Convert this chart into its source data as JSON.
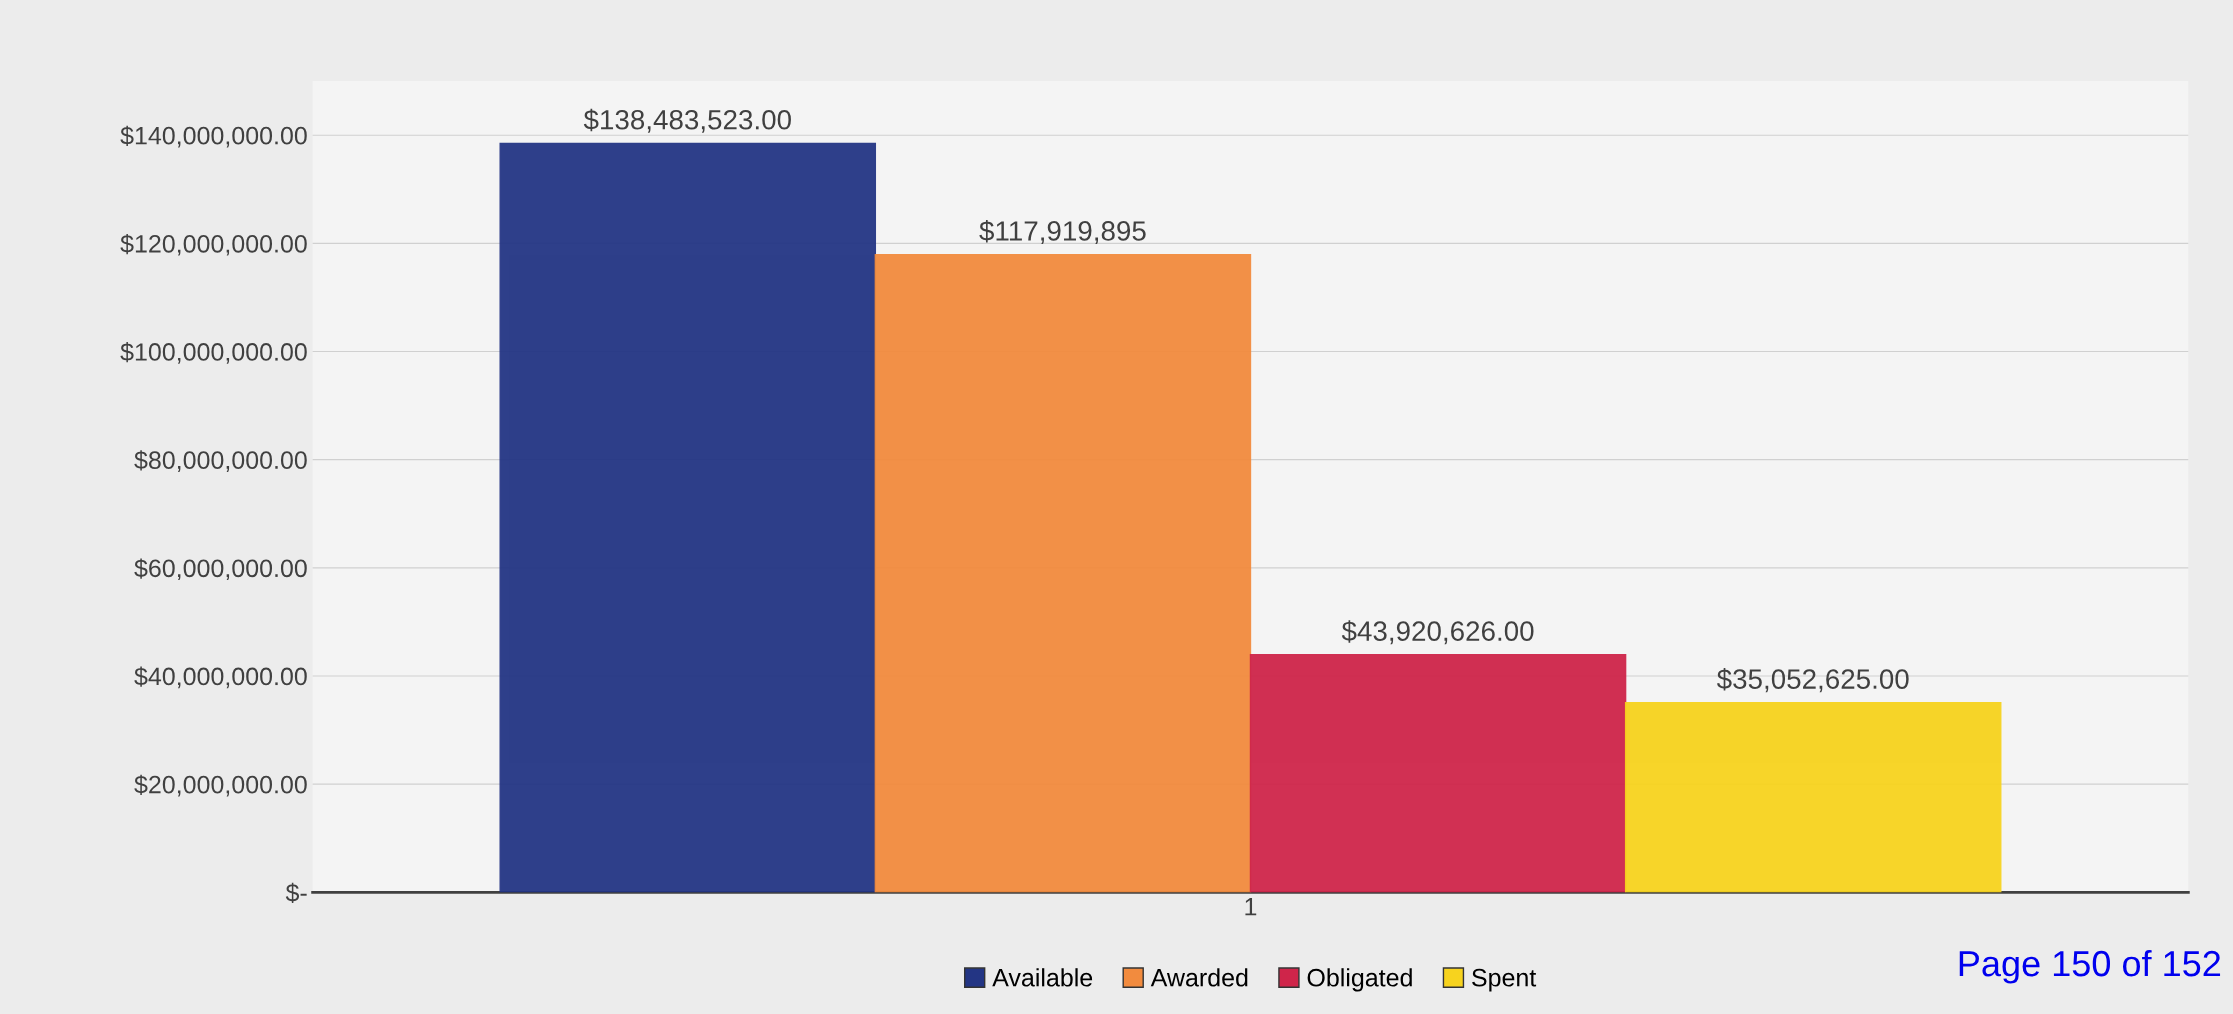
{
  "chart_data": {
    "type": "bar",
    "categories": [
      "1"
    ],
    "series": [
      {
        "name": "Available",
        "color": "#233584",
        "values": [
          138483523
        ],
        "value_labels": [
          "$138,483,523.00"
        ]
      },
      {
        "name": "Awarded",
        "color": "#f28b3e",
        "values": [
          117919895
        ],
        "value_labels": [
          "$117,919,895"
        ]
      },
      {
        "name": "Obligated",
        "color": "#cf254a",
        "values": [
          43920626
        ],
        "value_labels": [
          "$43,920,626.00"
        ]
      },
      {
        "name": "Spent",
        "color": "#f7d31e",
        "values": [
          35052625
        ],
        "value_labels": [
          "$35,052,625.00"
        ]
      }
    ],
    "ylim": [
      0,
      150000000
    ],
    "yticks": [
      {
        "value": 0,
        "label": "$-"
      },
      {
        "value": 20000000,
        "label": "$20,000,000.00"
      },
      {
        "value": 40000000,
        "label": "$40,000,000.00"
      },
      {
        "value": 60000000,
        "label": "$60,000,000.00"
      },
      {
        "value": 80000000,
        "label": "$80,000,000.00"
      },
      {
        "value": 100000000,
        "label": "$100,000,000.00"
      },
      {
        "value": 120000000,
        "label": "$120,000,000.00"
      },
      {
        "value": 140000000,
        "label": "$140,000,000.00"
      }
    ],
    "grid": "y",
    "legend": "bottom",
    "annotations": [
      "Page 150 of 152"
    ]
  }
}
